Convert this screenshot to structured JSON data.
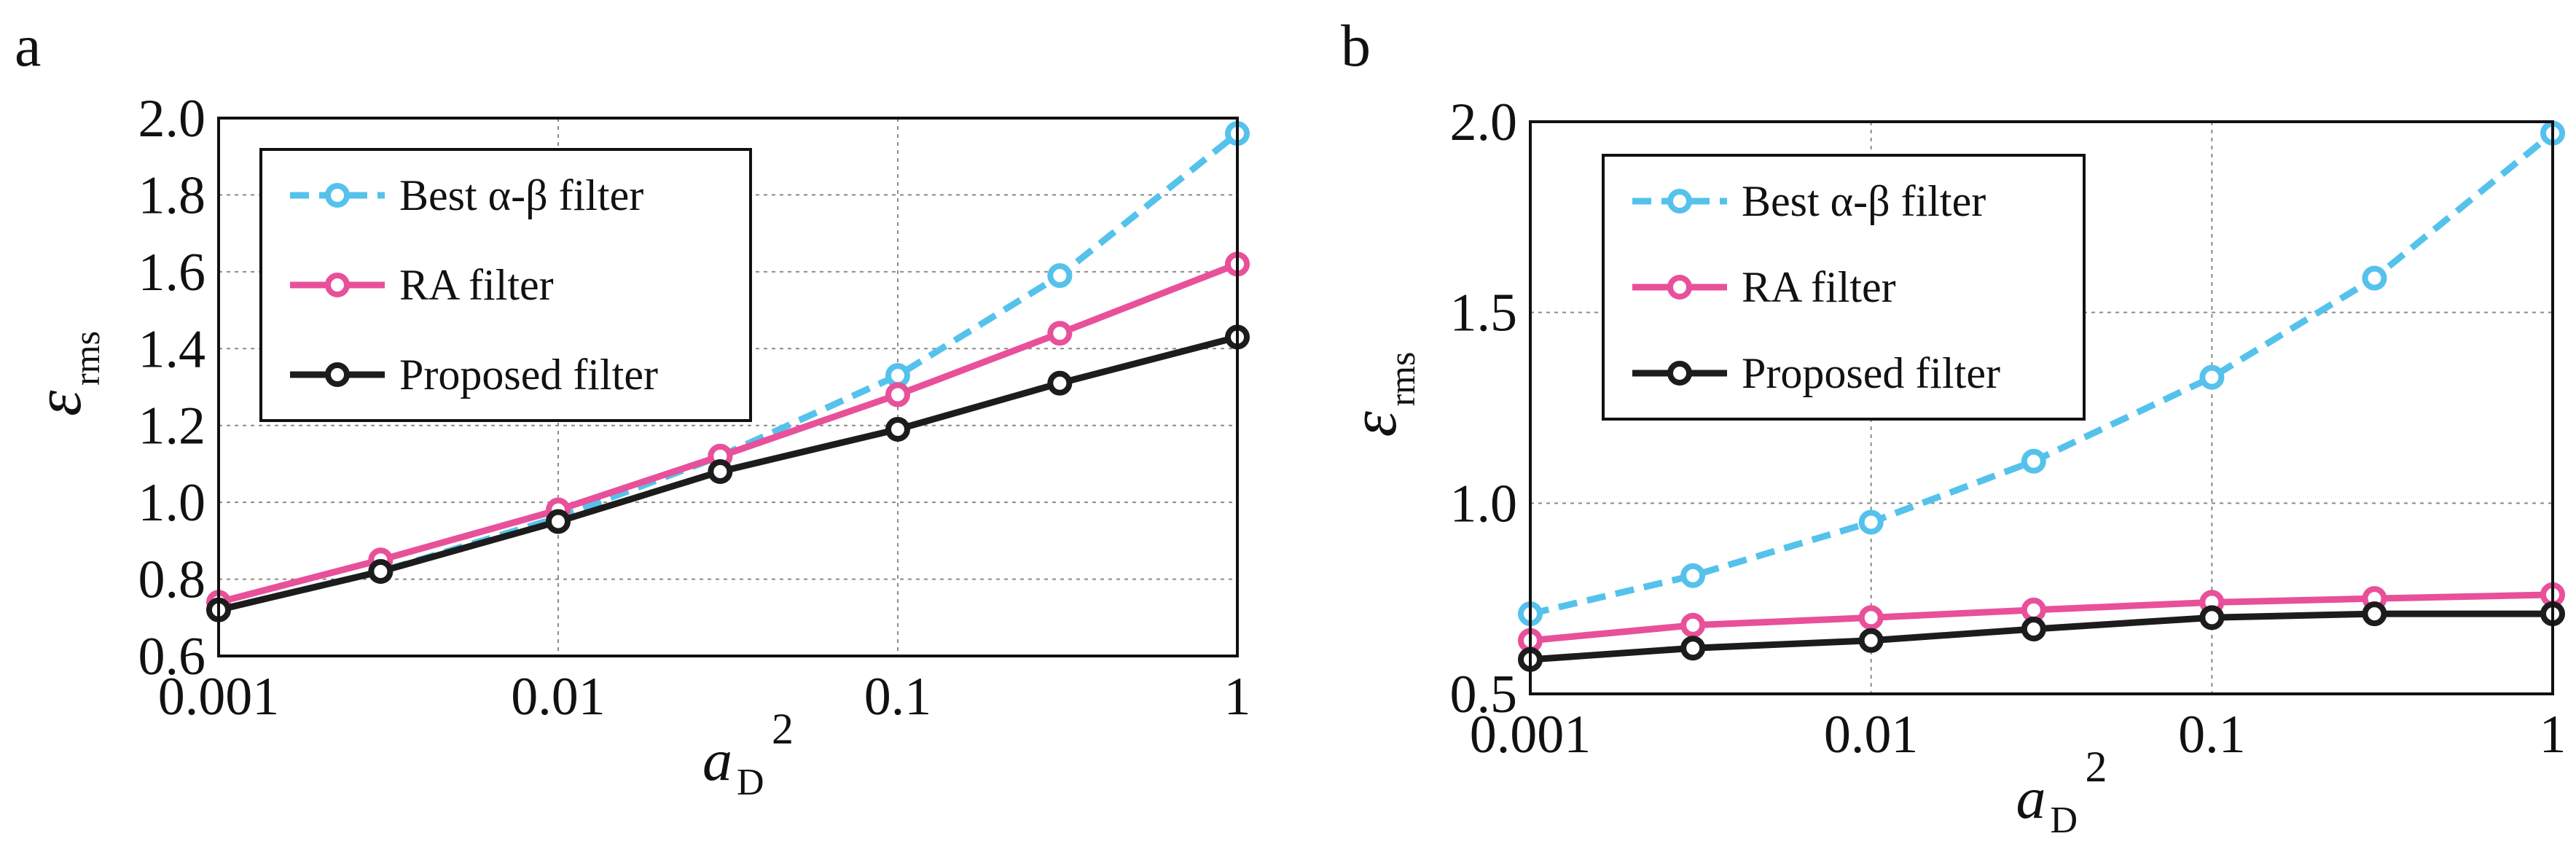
{
  "chart_data": [
    {
      "panel_label": "a",
      "type": "line",
      "xscale": "log",
      "xlabel": {
        "main": "a",
        "sub": "D",
        "sup": "2"
      },
      "ylabel": {
        "main": "ε",
        "sub": "rms"
      },
      "x": [
        0.001,
        0.003,
        0.01,
        0.03,
        0.1,
        0.3,
        1
      ],
      "x_ticks": [
        0.001,
        0.01,
        0.1,
        1
      ],
      "x_tick_labels": [
        "0.001",
        "0.01",
        "0.1",
        "1"
      ],
      "ylim": [
        0.6,
        2.0
      ],
      "y_ticks": [
        0.6,
        0.8,
        1.0,
        1.2,
        1.4,
        1.6,
        1.8,
        2.0
      ],
      "y_tick_labels": [
        "0.6",
        "0.8",
        "1.0",
        "1.2",
        "1.4",
        "1.6",
        "1.8",
        "2.0"
      ],
      "grid": true,
      "legend_position": "top-left",
      "series": [
        {
          "name": "Best α-β filter",
          "color": "#55c2ec",
          "style": "dashed",
          "values": [
            0.72,
            0.82,
            0.96,
            1.12,
            1.33,
            1.59,
            1.96
          ]
        },
        {
          "name": "RA filter",
          "color": "#e8509a",
          "style": "solid",
          "values": [
            0.74,
            0.85,
            0.98,
            1.12,
            1.28,
            1.44,
            1.62
          ]
        },
        {
          "name": "Proposed filter",
          "color": "#1c1c1c",
          "style": "solid",
          "values": [
            0.72,
            0.82,
            0.95,
            1.08,
            1.19,
            1.31,
            1.43
          ]
        }
      ]
    },
    {
      "panel_label": "b",
      "type": "line",
      "xscale": "log",
      "xlabel": {
        "main": "a",
        "sub": "D",
        "sup": "2"
      },
      "ylabel": {
        "main": "ε",
        "sub": "rms"
      },
      "x": [
        0.001,
        0.003,
        0.01,
        0.03,
        0.1,
        0.3,
        1
      ],
      "x_ticks": [
        0.001,
        0.01,
        0.1,
        1
      ],
      "x_tick_labels": [
        "0.001",
        "0.01",
        "0.1",
        "1"
      ],
      "ylim": [
        0.5,
        2.0
      ],
      "y_ticks": [
        0.5,
        1.0,
        1.5,
        2.0
      ],
      "y_tick_labels": [
        "0.5",
        "1.0",
        "1.5",
        "2.0"
      ],
      "grid": true,
      "legend_position": "top-left",
      "series": [
        {
          "name": "Best α-β filter",
          "color": "#55c2ec",
          "style": "dashed",
          "values": [
            0.71,
            0.81,
            0.95,
            1.11,
            1.33,
            1.59,
            1.97
          ]
        },
        {
          "name": "RA filter",
          "color": "#e8509a",
          "style": "solid",
          "values": [
            0.64,
            0.68,
            0.7,
            0.72,
            0.74,
            0.75,
            0.76
          ]
        },
        {
          "name": "Proposed filter",
          "color": "#1c1c1c",
          "style": "solid",
          "values": [
            0.59,
            0.62,
            0.64,
            0.67,
            0.7,
            0.71,
            0.71
          ]
        }
      ]
    }
  ]
}
